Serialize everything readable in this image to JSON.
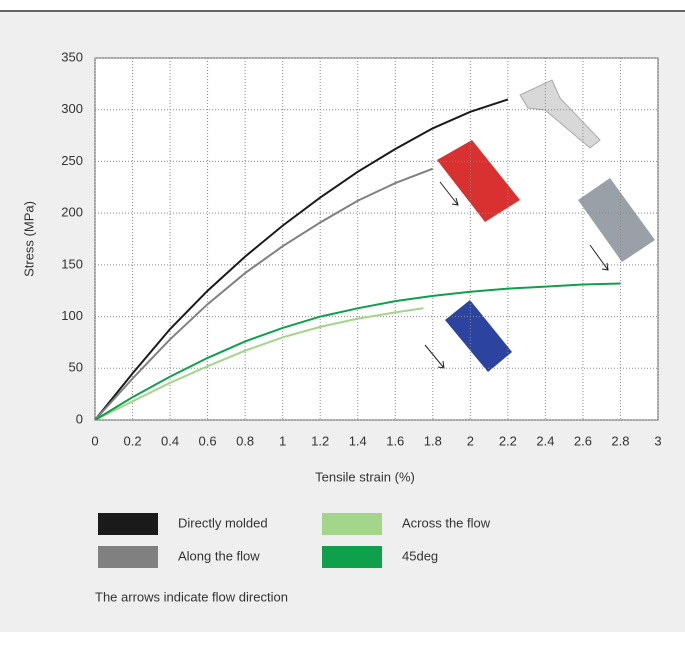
{
  "chart_data": {
    "type": "line",
    "xlabel": "Tensile strain (%)",
    "ylabel": "Stress (MPa)",
    "xlim": [
      0,
      3
    ],
    "xticks": [
      0,
      0.2,
      0.4,
      0.6,
      0.8,
      1,
      1.2,
      1.4,
      1.6,
      1.8,
      2,
      2.2,
      2.4,
      2.6,
      2.8,
      3
    ],
    "ylim": [
      0,
      350
    ],
    "yticks": [
      0,
      50,
      100,
      150,
      200,
      250,
      300,
      350
    ],
    "grid": true,
    "series": [
      {
        "name": "Directly molded",
        "color": "#1a1a1a",
        "x": [
          0,
          0.2,
          0.4,
          0.6,
          0.8,
          1,
          1.2,
          1.4,
          1.6,
          1.8,
          2,
          2.2
        ],
        "values": [
          0,
          45,
          88,
          125,
          158,
          188,
          215,
          240,
          262,
          282,
          298,
          310
        ]
      },
      {
        "name": "Along the flow",
        "color": "#808080",
        "x": [
          0,
          0.2,
          0.4,
          0.6,
          0.8,
          1,
          1.2,
          1.4,
          1.6,
          1.8
        ],
        "values": [
          0,
          40,
          78,
          112,
          142,
          168,
          191,
          212,
          229,
          243
        ]
      },
      {
        "name": "Across the flow",
        "color": "#a3d58a",
        "x": [
          0,
          0.2,
          0.4,
          0.6,
          0.8,
          1,
          1.2,
          1.4,
          1.6,
          1.75
        ],
        "values": [
          0,
          18,
          36,
          52,
          67,
          80,
          90,
          98,
          104,
          108
        ]
      },
      {
        "name": "45deg",
        "color": "#0ea04a",
        "x": [
          0,
          0.2,
          0.4,
          0.6,
          0.8,
          1,
          1.2,
          1.4,
          1.6,
          1.8,
          2,
          2.2,
          2.4,
          2.6,
          2.8
        ],
        "values": [
          0,
          22,
          42,
          60,
          76,
          89,
          100,
          108,
          115,
          120,
          124,
          127,
          129,
          131,
          132
        ]
      }
    ],
    "note": "The arrows indicate flow direction"
  }
}
